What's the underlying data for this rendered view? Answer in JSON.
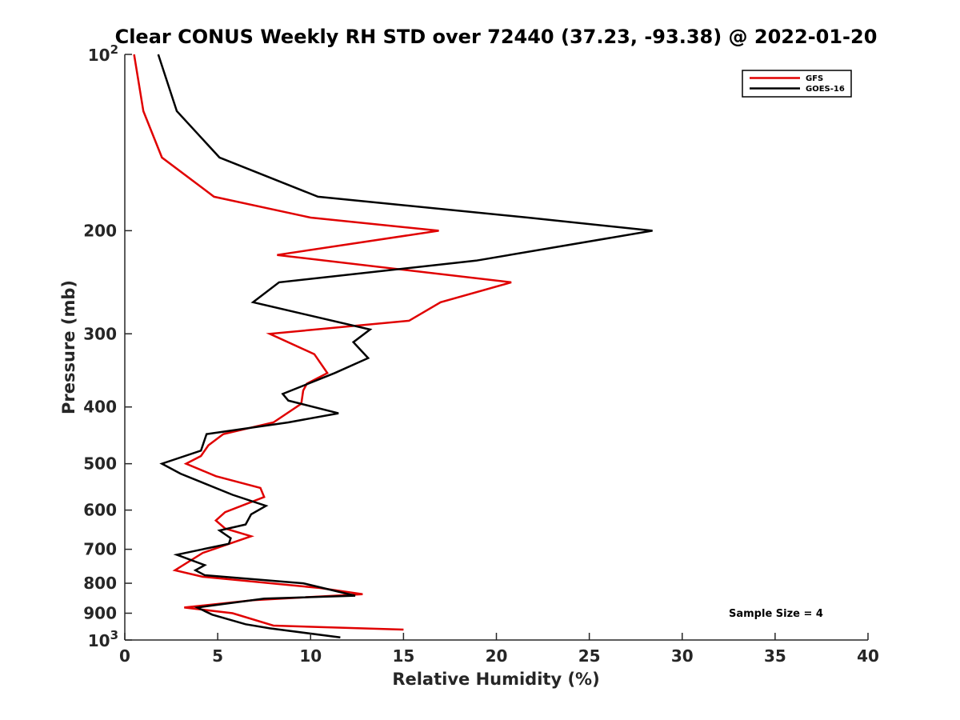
{
  "chart_data": {
    "type": "line",
    "title": "Clear CONUS Weekly RH STD over 72440 (37.23, -93.38) @ 2022-01-20",
    "xlabel": "Relative Humidity (%)",
    "ylabel": "Pressure (mb)",
    "xlim": [
      0,
      40
    ],
    "ylim": [
      100,
      1000
    ],
    "y_scale": "log",
    "y_reversed": true,
    "x_ticks": [
      "0",
      "5",
      "10",
      "15",
      "20",
      "25",
      "30",
      "35",
      "40"
    ],
    "y_ticks": [
      {
        "value": 200,
        "label": "200"
      },
      {
        "value": 300,
        "label": "300"
      },
      {
        "value": 400,
        "label": "400"
      },
      {
        "value": 500,
        "label": "500"
      },
      {
        "value": 600,
        "label": "600"
      },
      {
        "value": 700,
        "label": "700"
      },
      {
        "value": 800,
        "label": "800"
      },
      {
        "value": 900,
        "label": "900"
      }
    ],
    "y_end_labels": {
      "top": {
        "value": 100,
        "base": "10",
        "exp": "2"
      },
      "bottom": {
        "value": 1000,
        "base": "10",
        "exp": "3"
      }
    },
    "legend": {
      "position": "top-right"
    },
    "annotation": "Sample Size = 4",
    "series": [
      {
        "name": "GFS",
        "color": "#e00000",
        "points": [
          [
            0.5,
            100
          ],
          [
            1.0,
            125
          ],
          [
            2.0,
            150
          ],
          [
            4.8,
            175
          ],
          [
            10.0,
            190
          ],
          [
            16.9,
            200
          ],
          [
            8.2,
            220
          ],
          [
            20.8,
            245
          ],
          [
            17.0,
            265
          ],
          [
            15.3,
            285
          ],
          [
            7.8,
            300
          ],
          [
            10.2,
            325
          ],
          [
            10.9,
            350
          ],
          [
            9.8,
            365
          ],
          [
            9.6,
            375
          ],
          [
            9.5,
            395
          ],
          [
            8.0,
            425
          ],
          [
            5.3,
            445
          ],
          [
            4.5,
            465
          ],
          [
            4.1,
            485
          ],
          [
            3.3,
            500
          ],
          [
            4.9,
            525
          ],
          [
            7.3,
            550
          ],
          [
            7.5,
            570
          ],
          [
            5.4,
            605
          ],
          [
            4.9,
            625
          ],
          [
            5.4,
            645
          ],
          [
            6.8,
            665
          ],
          [
            4.2,
            710
          ],
          [
            2.7,
            760
          ],
          [
            4.2,
            780
          ],
          [
            10.5,
            815
          ],
          [
            12.8,
            835
          ],
          [
            6.9,
            855
          ],
          [
            3.2,
            880
          ],
          [
            5.8,
            900
          ],
          [
            8.0,
            945
          ],
          [
            15.0,
            960
          ]
        ]
      },
      {
        "name": "GOES-16",
        "color": "#000000",
        "points": [
          [
            1.8,
            100
          ],
          [
            2.8,
            125
          ],
          [
            5.1,
            150
          ],
          [
            10.4,
            175
          ],
          [
            21.7,
            190
          ],
          [
            28.4,
            200
          ],
          [
            18.9,
            225
          ],
          [
            8.3,
            245
          ],
          [
            6.9,
            265
          ],
          [
            13.2,
            295
          ],
          [
            12.3,
            310
          ],
          [
            13.1,
            330
          ],
          [
            11.3,
            350
          ],
          [
            8.5,
            380
          ],
          [
            8.8,
            390
          ],
          [
            11.5,
            410
          ],
          [
            8.8,
            425
          ],
          [
            4.4,
            445
          ],
          [
            4.1,
            475
          ],
          [
            2.0,
            500
          ],
          [
            3.0,
            520
          ],
          [
            5.8,
            565
          ],
          [
            7.6,
            590
          ],
          [
            6.8,
            610
          ],
          [
            6.5,
            635
          ],
          [
            5.1,
            650
          ],
          [
            5.7,
            670
          ],
          [
            5.6,
            685
          ],
          [
            2.8,
            715
          ],
          [
            4.3,
            745
          ],
          [
            3.8,
            760
          ],
          [
            4.3,
            775
          ],
          [
            9.6,
            800
          ],
          [
            12.4,
            840
          ],
          [
            7.5,
            850
          ],
          [
            3.9,
            880
          ],
          [
            4.7,
            905
          ],
          [
            6.5,
            940
          ],
          [
            7.8,
            955
          ],
          [
            11.6,
            990
          ]
        ]
      }
    ]
  }
}
